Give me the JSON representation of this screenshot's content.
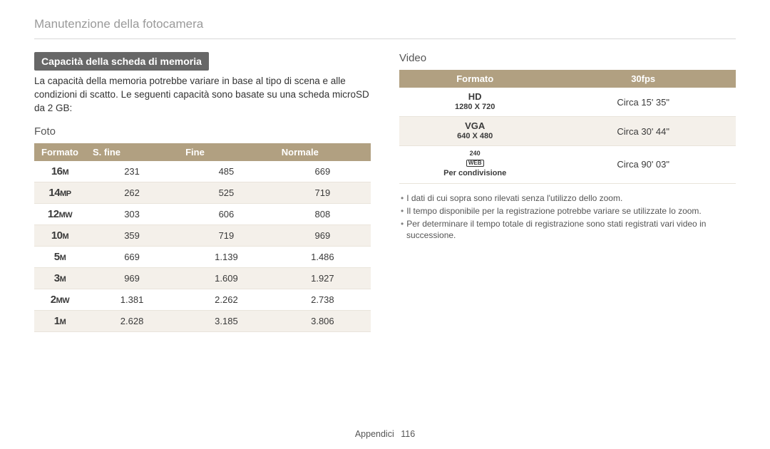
{
  "page_title": "Manutenzione della fotocamera",
  "left": {
    "heading": "Capacità della scheda di memoria",
    "intro": "La capacità della memoria potrebbe variare in base al tipo di scena e alle condizioni di scatto. Le seguenti capacità sono basate su una scheda microSD da 2 GB:",
    "sub_heading": "Foto",
    "columns": [
      "Formato",
      "S. fine",
      "Fine",
      "Normale"
    ],
    "rows": [
      {
        "big": "16",
        "suf": "M",
        "v": [
          "231",
          "485",
          "669"
        ]
      },
      {
        "big": "14",
        "suf": "MP",
        "v": [
          "262",
          "525",
          "719"
        ]
      },
      {
        "big": "12",
        "suf": "MW",
        "v": [
          "303",
          "606",
          "808"
        ]
      },
      {
        "big": "10",
        "suf": "M",
        "v": [
          "359",
          "719",
          "969"
        ]
      },
      {
        "big": "5",
        "suf": "M",
        "v": [
          "669",
          "1.139",
          "1.486"
        ]
      },
      {
        "big": "3",
        "suf": "M",
        "v": [
          "969",
          "1.609",
          "1.927"
        ]
      },
      {
        "big": "2",
        "suf": "MW",
        "v": [
          "1.381",
          "2.262",
          "2.738"
        ]
      },
      {
        "big": "1",
        "suf": "M",
        "v": [
          "2.628",
          "3.185",
          "3.806"
        ]
      }
    ]
  },
  "right": {
    "sub_heading": "Video",
    "columns": [
      "Formato",
      "30fps"
    ],
    "rows": [
      {
        "main": "HD",
        "sub": "1280 X 720",
        "v": "Circa 15' 35\""
      },
      {
        "main": "VGA",
        "sub": "640 X 480",
        "v": "Circa 30' 44\""
      },
      {
        "icon": "240",
        "icon2": "WEB",
        "sub": "Per condivisione",
        "v": "Circa 90' 03\""
      }
    ],
    "notes": [
      "I dati di cui sopra sono rilevati senza l'utilizzo dello zoom.",
      "Il tempo disponibile per la registrazione potrebbe variare se utilizzate lo zoom.",
      "Per determinare il tempo totale di registrazione sono stati registrati vari video in successione."
    ]
  },
  "footer": {
    "section": "Appendici",
    "page": "116"
  },
  "colors": {
    "header_bg": "#b1a081",
    "stripe": "#f4f0ea",
    "heading_bg": "#676767",
    "title_color": "#9a9a9a"
  }
}
